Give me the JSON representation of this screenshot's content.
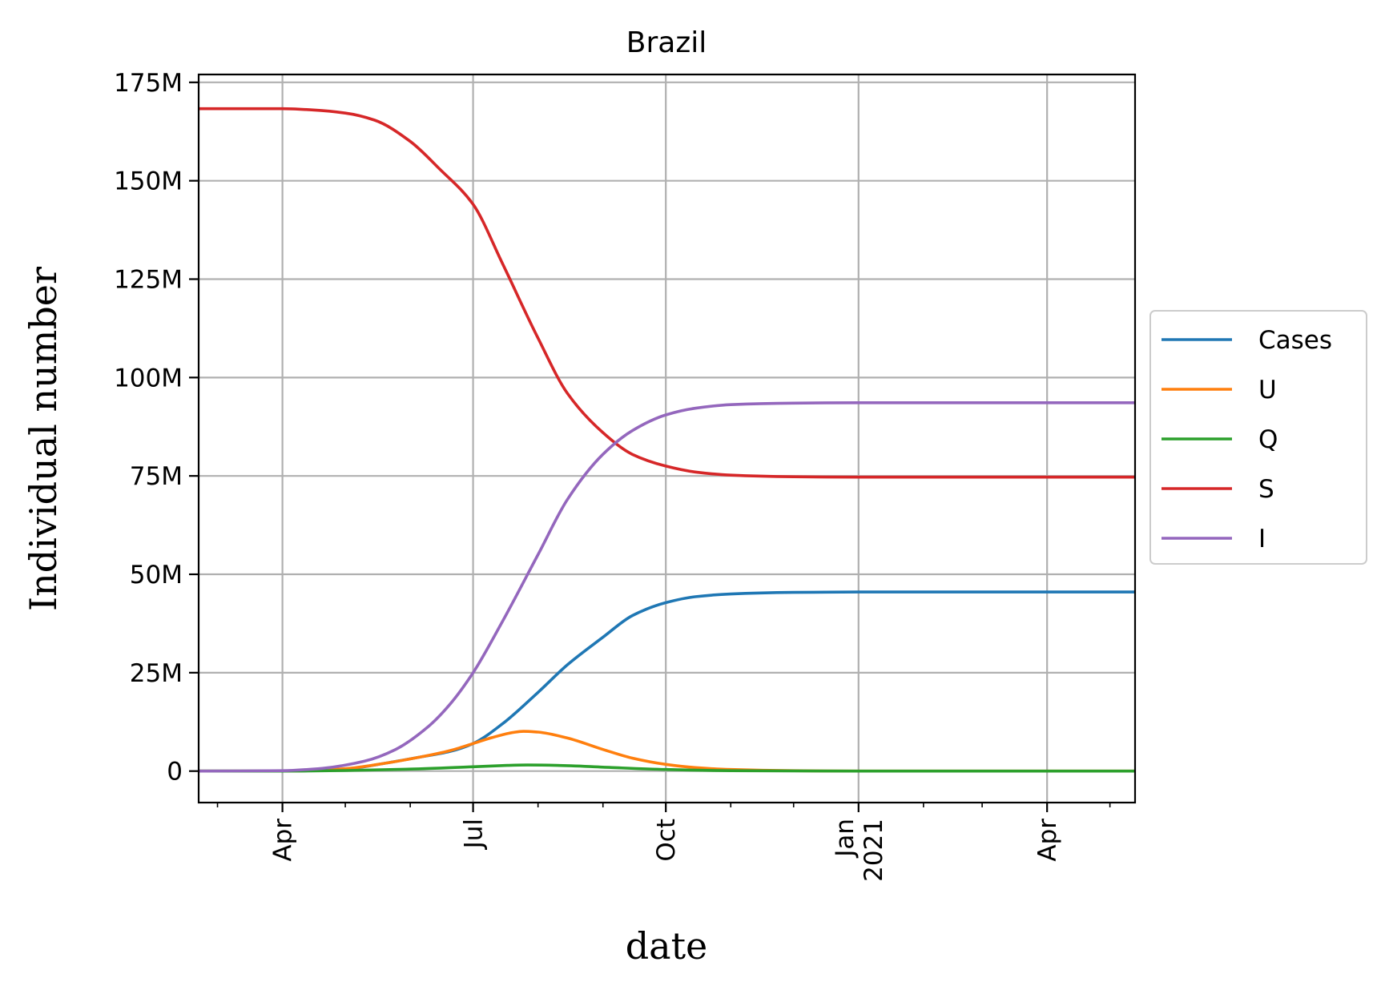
{
  "chart_data": {
    "type": "line",
    "title": "Brazil",
    "xlabel": "date",
    "ylabel": "Individual number",
    "x_range": [
      "2020-02-21",
      "2021-05-13"
    ],
    "ylim": [
      -8000000,
      177000000
    ],
    "grid": true,
    "legend_position": "center-right, outside plot",
    "y_ticks": [
      {
        "value": 0,
        "label": "0"
      },
      {
        "value": 25000000,
        "label": "25M"
      },
      {
        "value": 50000000,
        "label": "50M"
      },
      {
        "value": 75000000,
        "label": "75M"
      },
      {
        "value": 100000000,
        "label": "100M"
      },
      {
        "value": 125000000,
        "label": "125M"
      },
      {
        "value": 150000000,
        "label": "150M"
      },
      {
        "value": 175000000,
        "label": "175M"
      }
    ],
    "x_ticks": [
      {
        "date": "2020-04-01",
        "label": "Apr"
      },
      {
        "date": "2020-07-01",
        "label": "Jul"
      },
      {
        "date": "2020-10-01",
        "label": "Oct"
      },
      {
        "date": "2021-01-01",
        "label": "Jan\n2021"
      },
      {
        "date": "2021-04-01",
        "label": "Apr"
      }
    ],
    "series": [
      {
        "name": "Cases",
        "color": "#1f77b4",
        "points": [
          [
            "2020-02-21",
            0
          ],
          [
            "2020-04-01",
            0
          ],
          [
            "2020-05-01",
            500000
          ],
          [
            "2020-05-20",
            2000000
          ],
          [
            "2020-06-05",
            3500000
          ],
          [
            "2020-06-20",
            5000000
          ],
          [
            "2020-07-01",
            7000000
          ],
          [
            "2020-07-15",
            12000000
          ],
          [
            "2020-08-01",
            20000000
          ],
          [
            "2020-08-15",
            27000000
          ],
          [
            "2020-09-01",
            34000000
          ],
          [
            "2020-09-15",
            39500000
          ],
          [
            "2020-10-01",
            42800000
          ],
          [
            "2020-10-15",
            44300000
          ],
          [
            "2020-11-01",
            45000000
          ],
          [
            "2020-12-01",
            45400000
          ],
          [
            "2021-01-01",
            45500000
          ],
          [
            "2021-05-13",
            45500000
          ]
        ]
      },
      {
        "name": "U",
        "color": "#ff7f0e",
        "points": [
          [
            "2020-02-21",
            0
          ],
          [
            "2020-04-01",
            0
          ],
          [
            "2020-05-01",
            600000
          ],
          [
            "2020-05-20",
            2000000
          ],
          [
            "2020-06-05",
            3500000
          ],
          [
            "2020-06-20",
            5200000
          ],
          [
            "2020-07-01",
            7000000
          ],
          [
            "2020-07-10",
            8500000
          ],
          [
            "2020-07-20",
            9800000
          ],
          [
            "2020-07-25",
            10100000
          ],
          [
            "2020-08-01",
            9900000
          ],
          [
            "2020-08-15",
            8400000
          ],
          [
            "2020-09-01",
            5500000
          ],
          [
            "2020-09-15",
            3300000
          ],
          [
            "2020-10-01",
            1700000
          ],
          [
            "2020-10-15",
            900000
          ],
          [
            "2020-11-01",
            400000
          ],
          [
            "2020-12-01",
            100000
          ],
          [
            "2021-01-01",
            0
          ],
          [
            "2021-05-13",
            0
          ]
        ]
      },
      {
        "name": "Q",
        "color": "#2ca02c",
        "points": [
          [
            "2020-02-21",
            0
          ],
          [
            "2020-04-01",
            0
          ],
          [
            "2020-05-01",
            150000
          ],
          [
            "2020-06-01",
            500000
          ],
          [
            "2020-07-01",
            1100000
          ],
          [
            "2020-07-15",
            1400000
          ],
          [
            "2020-07-27",
            1550000
          ],
          [
            "2020-08-10",
            1450000
          ],
          [
            "2020-09-01",
            1000000
          ],
          [
            "2020-10-01",
            400000
          ],
          [
            "2020-11-01",
            100000
          ],
          [
            "2021-01-01",
            0
          ],
          [
            "2021-05-13",
            0
          ]
        ]
      },
      {
        "name": "S",
        "color": "#d62728",
        "points": [
          [
            "2020-02-21",
            168300000
          ],
          [
            "2020-04-01",
            168300000
          ],
          [
            "2020-04-15",
            168000000
          ],
          [
            "2020-05-01",
            167200000
          ],
          [
            "2020-05-15",
            165400000
          ],
          [
            "2020-06-01",
            160000000
          ],
          [
            "2020-06-15",
            153000000
          ],
          [
            "2020-07-01",
            144000000
          ],
          [
            "2020-07-15",
            129000000
          ],
          [
            "2020-08-01",
            110000000
          ],
          [
            "2020-08-15",
            96000000
          ],
          [
            "2020-09-01",
            86000000
          ],
          [
            "2020-09-15",
            80500000
          ],
          [
            "2020-10-01",
            77500000
          ],
          [
            "2020-10-15",
            76000000
          ],
          [
            "2020-11-01",
            75200000
          ],
          [
            "2020-12-01",
            74800000
          ],
          [
            "2021-01-01",
            74700000
          ],
          [
            "2021-05-13",
            74700000
          ]
        ]
      },
      {
        "name": "I",
        "color": "#9467bd",
        "points": [
          [
            "2020-02-21",
            0
          ],
          [
            "2020-04-01",
            100000
          ],
          [
            "2020-04-20",
            700000
          ],
          [
            "2020-05-10",
            2500000
          ],
          [
            "2020-05-25",
            5500000
          ],
          [
            "2020-06-10",
            11500000
          ],
          [
            "2020-06-20",
            17000000
          ],
          [
            "2020-07-01",
            25000000
          ],
          [
            "2020-07-15",
            38000000
          ],
          [
            "2020-08-01",
            55000000
          ],
          [
            "2020-08-15",
            69000000
          ],
          [
            "2020-09-01",
            80500000
          ],
          [
            "2020-09-15",
            86500000
          ],
          [
            "2020-10-01",
            90500000
          ],
          [
            "2020-10-15",
            92200000
          ],
          [
            "2020-11-01",
            93100000
          ],
          [
            "2020-12-01",
            93500000
          ],
          [
            "2021-01-01",
            93600000
          ],
          [
            "2021-05-13",
            93600000
          ]
        ]
      }
    ]
  }
}
